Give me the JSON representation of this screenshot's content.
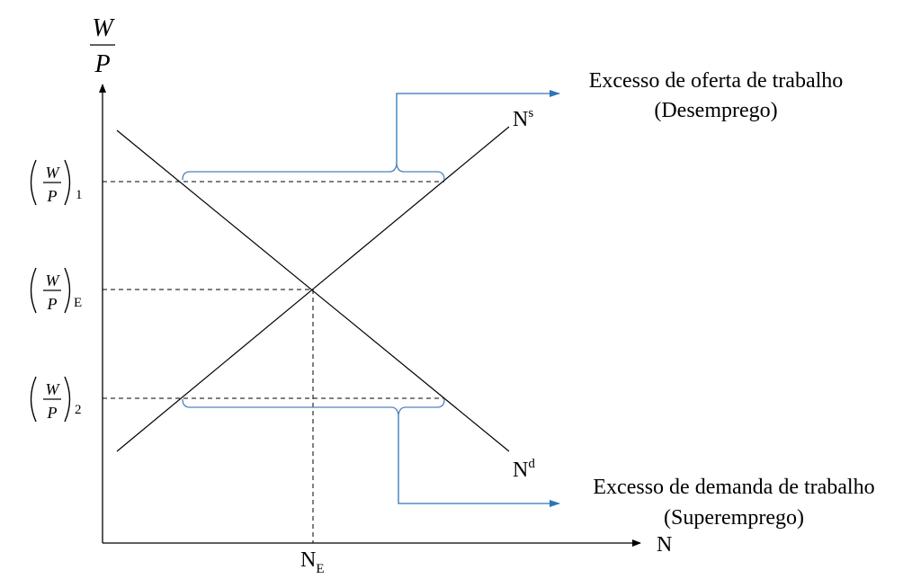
{
  "axes": {
    "y_label_num": "W",
    "y_label_den": "P",
    "x_label": "N"
  },
  "curves": {
    "supply_label": "N",
    "supply_sup": "s",
    "demand_label": "N",
    "demand_sup": "d"
  },
  "levels": {
    "frac_num": "W",
    "frac_den": "P",
    "high_sub": "1",
    "eq_sub": "E",
    "low_sub": "2"
  },
  "equilibrium": {
    "x_label": "N",
    "x_sub": "E"
  },
  "annotations": {
    "excess_supply_line1": "Excesso de oferta de trabalho",
    "excess_supply_line2": "(Desemprego)",
    "excess_demand_line1": "Excesso de demanda de trabalho",
    "excess_demand_line2": "(Superemprego)"
  },
  "colors": {
    "axis": "#000000",
    "bracket": "#4f81bd",
    "arrow": "#2e75b6"
  }
}
